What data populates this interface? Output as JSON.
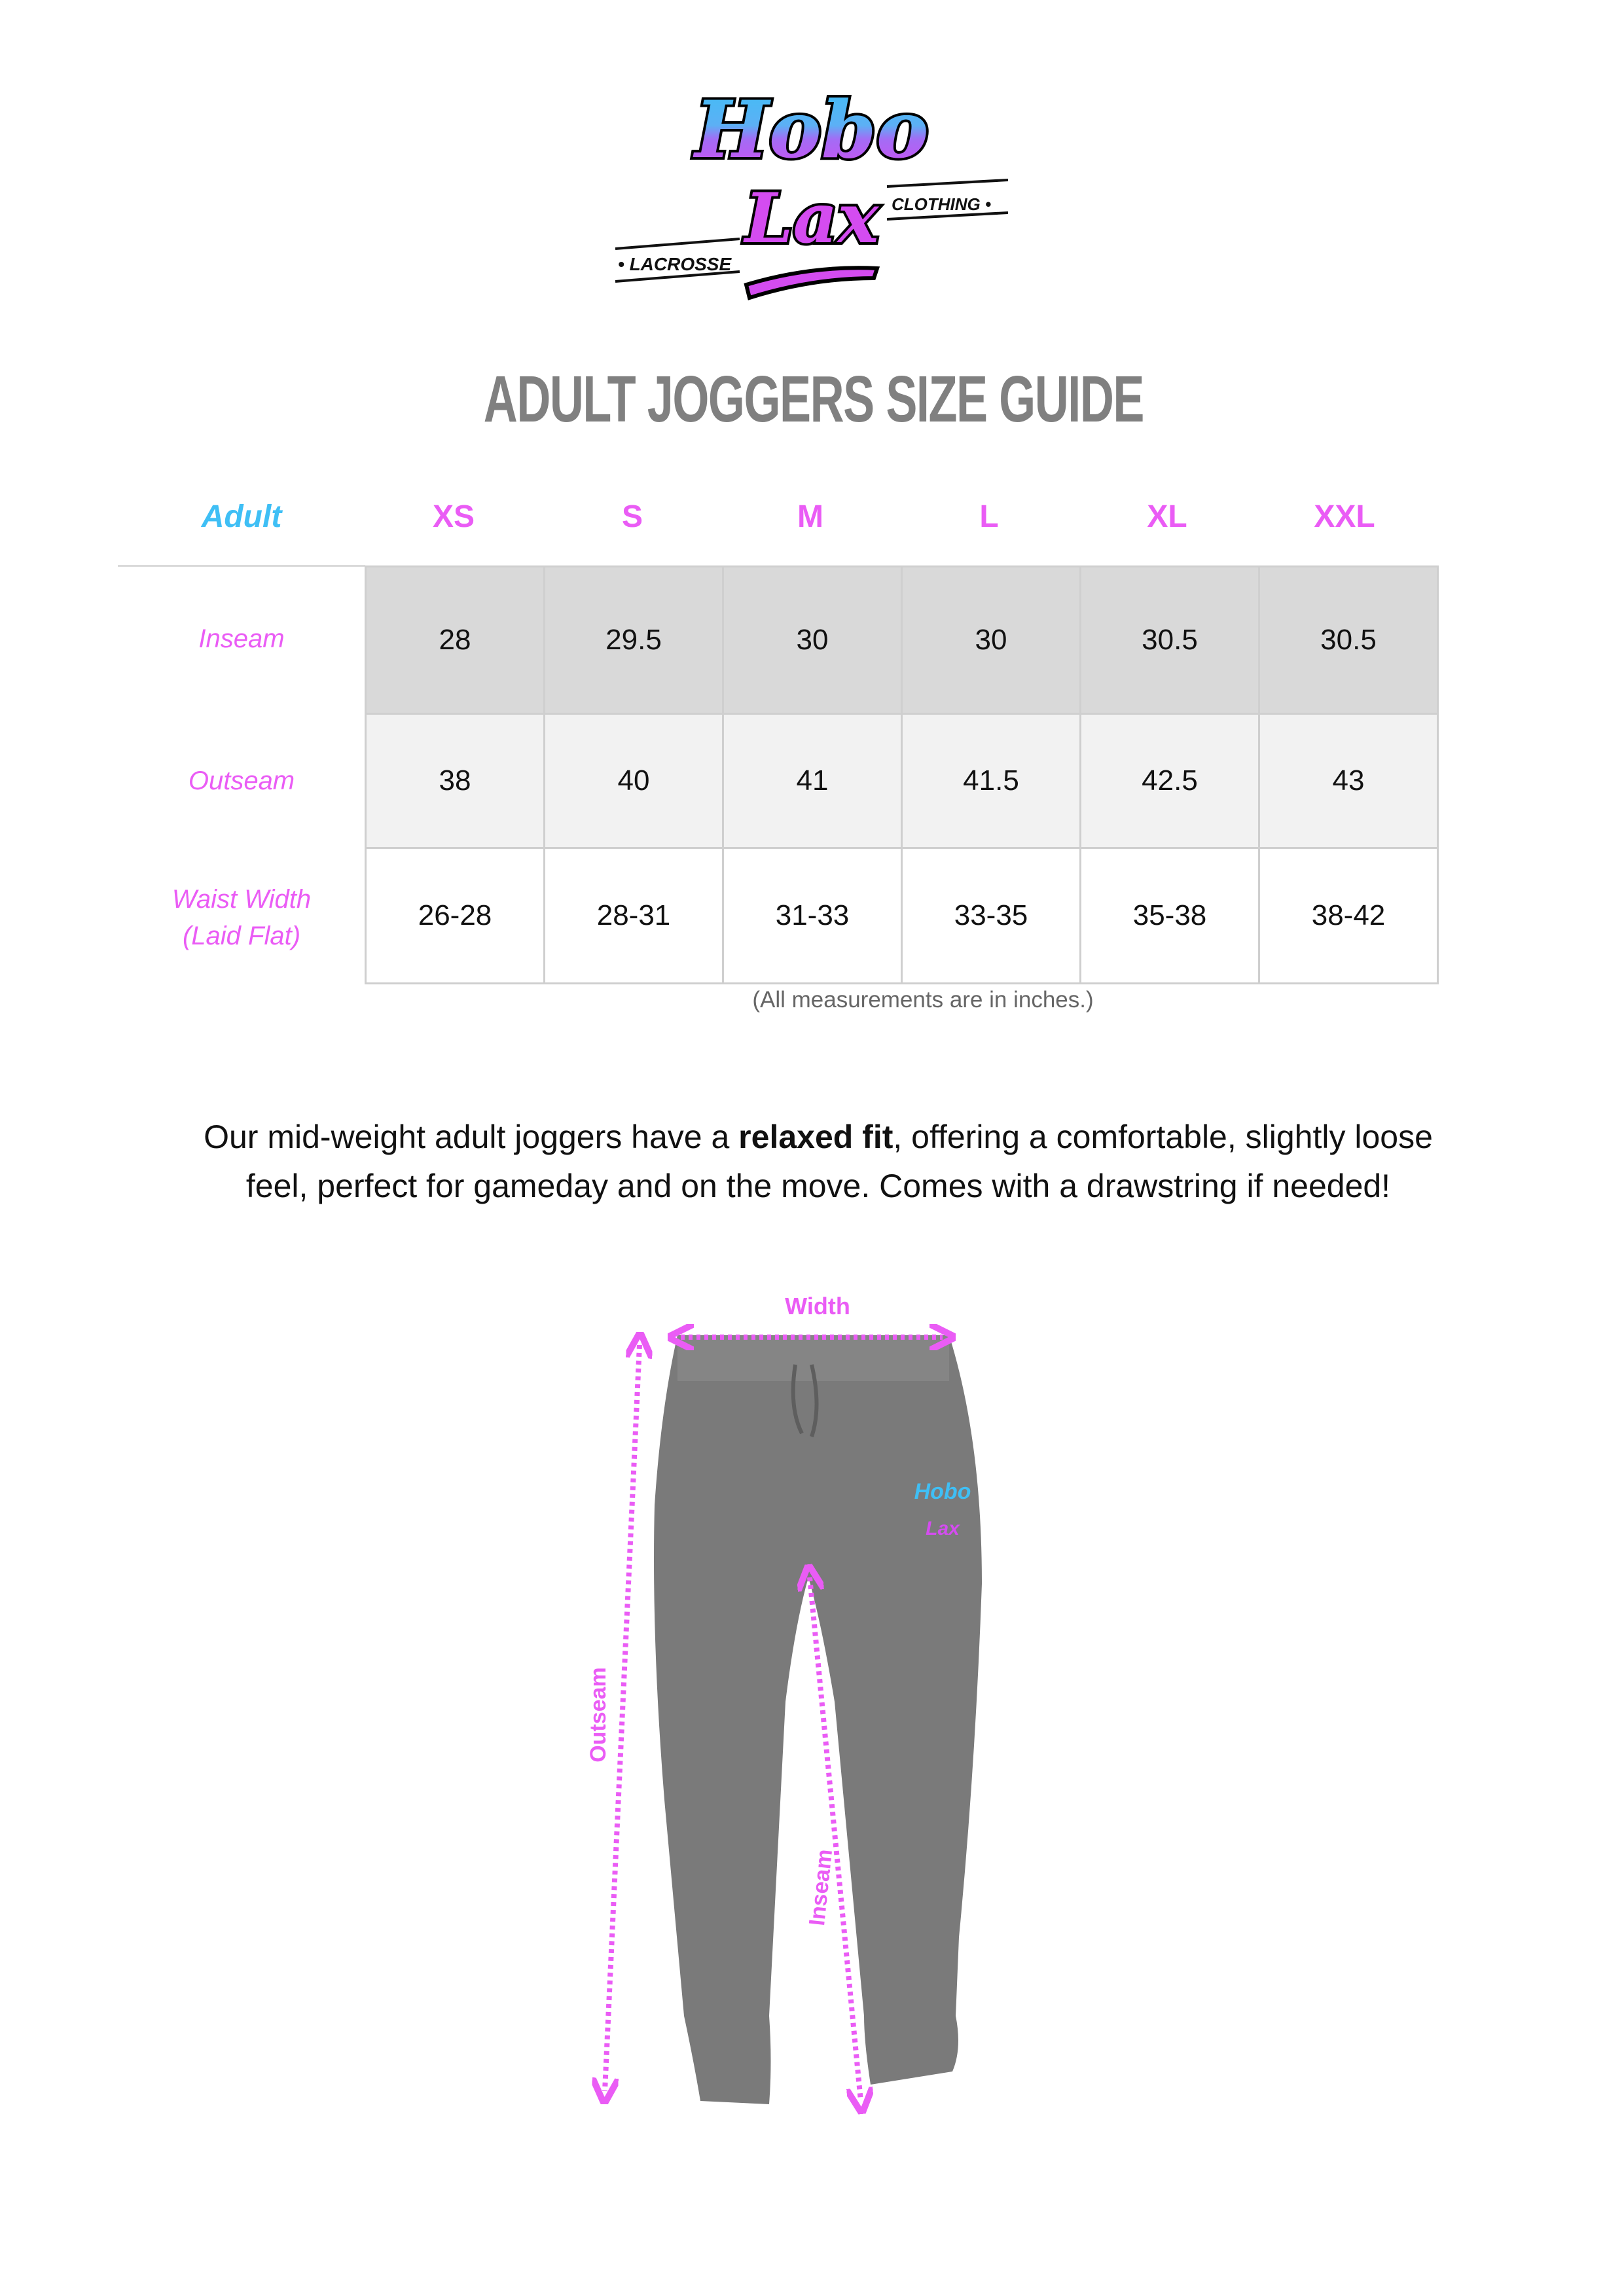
{
  "logo": {
    "text_main": "Hobo Lax",
    "text_left": "LACROSSE",
    "text_right": "CLOTHING"
  },
  "title": "ADULT JOGGERS SIZE GUIDE",
  "table": {
    "corner": "Adult",
    "sizes": [
      "XS",
      "S",
      "M",
      "L",
      "XL",
      "XXL"
    ],
    "rows": [
      {
        "label": "Inseam",
        "values": [
          "28",
          "29.5",
          "30",
          "30",
          "30.5",
          "30.5"
        ]
      },
      {
        "label": "Outseam",
        "values": [
          "38",
          "40",
          "41",
          "41.5",
          "42.5",
          "43"
        ]
      },
      {
        "label": "Waist Width",
        "label2": "(Laid Flat)",
        "values": [
          "26-28",
          "28-31",
          "31-33",
          "33-35",
          "35-38",
          "38-42"
        ]
      }
    ],
    "note": "(All measurements are in inches.)"
  },
  "description": {
    "before": "Our mid-weight adult joggers have a ",
    "bold": "relaxed fit",
    "after": ", offering a comfortable, slightly loose feel, perfect for gameday and on the move. Comes with a drawstring if needed!"
  },
  "diagram": {
    "width_label": "Width",
    "outseam_label": "Outseam",
    "inseam_label": "Inseam"
  },
  "colors": {
    "accent_pink": "#ea5cf5",
    "accent_blue": "#3fbff5",
    "title_gray": "#808080",
    "row1": "#d9d9d9",
    "row2": "#f2f2f2",
    "pants": "#7a7a7a"
  }
}
